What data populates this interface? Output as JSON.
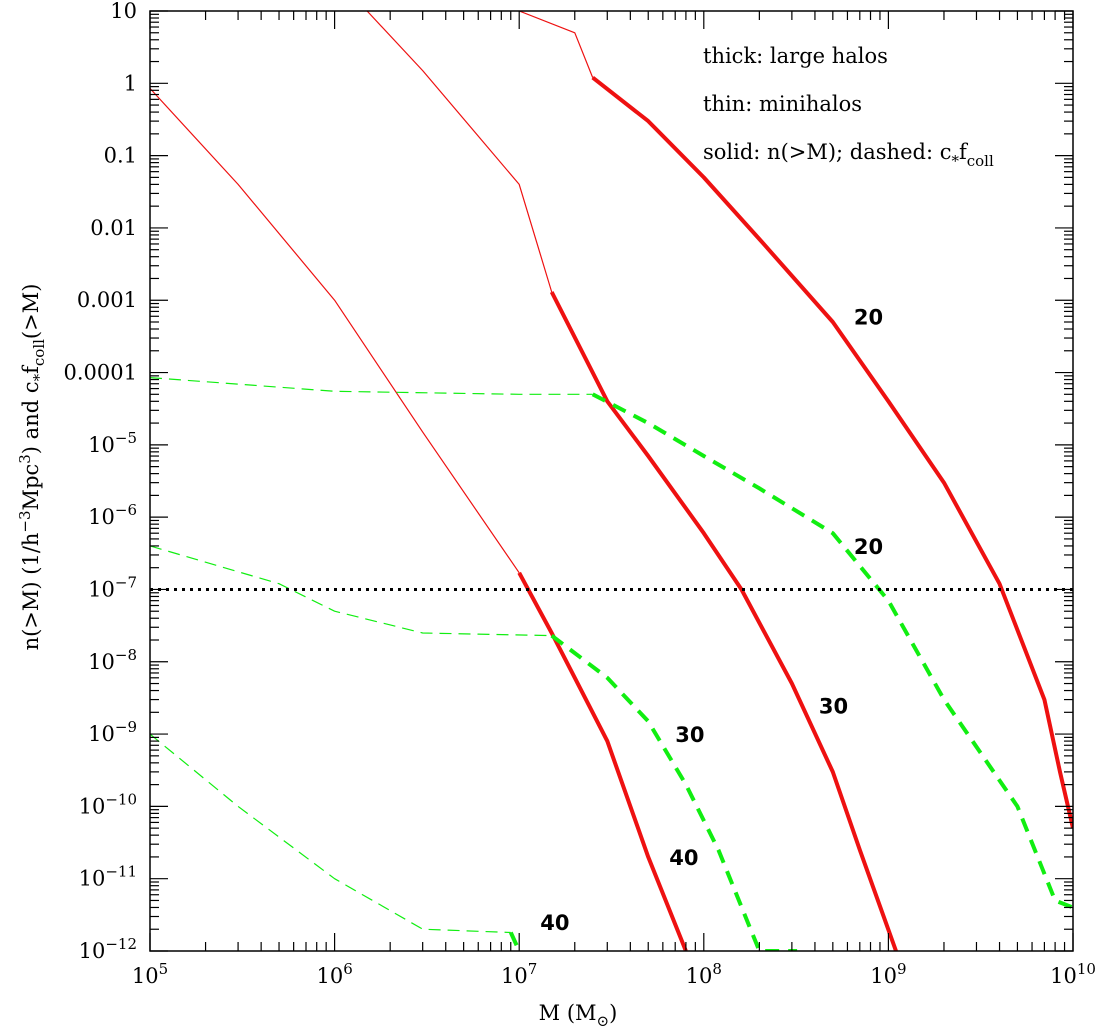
{
  "chart_data": {
    "type": "line",
    "xscale": "log",
    "yscale": "log",
    "xlim": [
      100000,
      10000000000
    ],
    "ylim": [
      1e-12,
      10
    ],
    "xlabel": {
      "pre": "M (M",
      "sub": "⊙",
      "post": ")"
    },
    "ylabel": {
      "p1": "n(>M) (1/h",
      "sup1": "−3",
      "p2": "Mpc",
      "sup2": "3",
      "p3": ") and c",
      "sub1": "*",
      "p4": "f",
      "sub2": "coll",
      "p5": "(>M)"
    },
    "x_tick_labels": [
      {
        "value": 100000,
        "base": "10",
        "exp": "5"
      },
      {
        "value": 1000000,
        "base": "10",
        "exp": "6"
      },
      {
        "value": 10000000,
        "base": "10",
        "exp": "7"
      },
      {
        "value": 100000000,
        "base": "10",
        "exp": "8"
      },
      {
        "value": 1000000000,
        "base": "10",
        "exp": "9"
      },
      {
        "value": 10000000000,
        "base": "10",
        "exp": "10"
      }
    ],
    "y_tick_labels": [
      {
        "value": 10,
        "text": "10"
      },
      {
        "value": 1,
        "text": "1"
      },
      {
        "value": 0.1,
        "text": "0.1"
      },
      {
        "value": 0.01,
        "text": "0.01"
      },
      {
        "value": 0.001,
        "text": "0.001"
      },
      {
        "value": 0.0001,
        "text": "0.0001"
      },
      {
        "value": 1e-05,
        "base": "10",
        "exp": "−5"
      },
      {
        "value": 1e-06,
        "base": "10",
        "exp": "−6"
      },
      {
        "value": 1e-07,
        "base": "10",
        "exp": "−7"
      },
      {
        "value": 1e-08,
        "base": "10",
        "exp": "−8"
      },
      {
        "value": 1e-09,
        "base": "10",
        "exp": "−9"
      },
      {
        "value": 1e-10,
        "base": "10",
        "exp": "−10"
      },
      {
        "value": 1e-11,
        "base": "10",
        "exp": "−11"
      },
      {
        "value": 1e-12,
        "base": "10",
        "exp": "−12"
      }
    ],
    "legend_notes": {
      "line1": "thick: large halos",
      "line2": "thin: minihalos",
      "line3_pre": "solid: n(>M); dashed: c",
      "line3_sub1": "*",
      "line3_mid": "f",
      "line3_sub2": "coll"
    },
    "colors": {
      "n_curves": "#ee1111",
      "f_curves": "#11ee11",
      "reference": "#000000",
      "axes": "#000000"
    },
    "series": [
      {
        "quantity": "n(>M)",
        "z": "20",
        "part": "minihalos",
        "points": [
          [
            10000000.0,
            10
          ],
          [
            20000000.0,
            5
          ],
          [
            25000000.0,
            1.2
          ]
        ]
      },
      {
        "quantity": "n(>M)",
        "z": "20",
        "part": "large halos",
        "points": [
          [
            25000000.0,
            1.2
          ],
          [
            50000000.0,
            0.3
          ],
          [
            100000000.0,
            0.05
          ],
          [
            200000000.0,
            0.007
          ],
          [
            500000000.0,
            0.0005
          ],
          [
            1000000000.0,
            4e-05
          ],
          [
            2000000000.0,
            3e-06
          ],
          [
            4000000000.0,
            1.2e-07
          ],
          [
            7000000000.0,
            3e-09
          ],
          [
            8500000000.0,
            3e-10
          ],
          [
            10000000000.0,
            5e-11
          ]
        ]
      },
      {
        "quantity": "n(>M)",
        "z": "30",
        "part": "minihalos",
        "points": [
          [
            1500000.0,
            10
          ],
          [
            3000000.0,
            1.5
          ],
          [
            10000000.0,
            0.04
          ],
          [
            15000000.0,
            0.0013
          ]
        ]
      },
      {
        "quantity": "n(>M)",
        "z": "30",
        "part": "large halos",
        "points": [
          [
            15000000.0,
            0.0013
          ],
          [
            30000000.0,
            4e-05
          ],
          [
            50000000.0,
            7e-06
          ],
          [
            100000000.0,
            6e-07
          ],
          [
            160000000.0,
            1e-07
          ],
          [
            300000000.0,
            5e-09
          ],
          [
            500000000.0,
            3e-10
          ],
          [
            700000000.0,
            2.5e-11
          ],
          [
            1100000000.0,
            1e-12
          ]
        ]
      },
      {
        "quantity": "n(>M)",
        "z": "40",
        "part": "minihalos",
        "points": [
          [
            100000.0,
            0.85
          ],
          [
            300000.0,
            0.04
          ],
          [
            1000000.0,
            0.001
          ],
          [
            3000000.0,
            1.5e-05
          ],
          [
            10000000.0,
            1.7e-07
          ]
        ]
      },
      {
        "quantity": "n(>M)",
        "z": "40",
        "part": "large halos",
        "points": [
          [
            10000000.0,
            1.7e-07
          ],
          [
            15000000.0,
            2.5e-08
          ],
          [
            20000000.0,
            6e-09
          ],
          [
            30000000.0,
            8e-10
          ],
          [
            50000000.0,
            2e-11
          ],
          [
            80000000.0,
            1e-12
          ]
        ]
      },
      {
        "quantity": "c*fcoll",
        "z": "20",
        "part": "minihalos",
        "points": [
          [
            100000.0,
            8.5e-05
          ],
          [
            1000000.0,
            5.5e-05
          ],
          [
            10000000.0,
            5e-05
          ],
          [
            25000000.0,
            5e-05
          ]
        ]
      },
      {
        "quantity": "c*fcoll",
        "z": "20",
        "part": "large halos",
        "points": [
          [
            25000000.0,
            5e-05
          ],
          [
            50000000.0,
            2e-05
          ],
          [
            100000000.0,
            7e-06
          ],
          [
            200000000.0,
            2.5e-06
          ],
          [
            500000000.0,
            6e-07
          ],
          [
            1000000000.0,
            7e-08
          ],
          [
            2000000000.0,
            3e-09
          ],
          [
            5000000000.0,
            1e-10
          ],
          [
            8000000000.0,
            5e-12
          ],
          [
            10000000000.0,
            4e-12
          ]
        ]
      },
      {
        "quantity": "c*fcoll",
        "z": "30",
        "part": "minihalos",
        "points": [
          [
            100000.0,
            4e-07
          ],
          [
            500000.0,
            1.2e-07
          ],
          [
            1000000.0,
            5e-08
          ],
          [
            3000000.0,
            2.5e-08
          ],
          [
            15000000.0,
            2.3e-08
          ]
        ]
      },
      {
        "quantity": "c*fcoll",
        "z": "30",
        "part": "large halos",
        "points": [
          [
            15000000.0,
            2.3e-08
          ],
          [
            30000000.0,
            6e-09
          ],
          [
            50000000.0,
            1.5e-09
          ],
          [
            80000000.0,
            2e-10
          ],
          [
            120000000.0,
            2.5e-11
          ],
          [
            200000000.0,
            1e-12
          ],
          [
            320000000.0,
            1e-12
          ]
        ]
      },
      {
        "quantity": "c*fcoll",
        "z": "40",
        "part": "minihalos",
        "points": [
          [
            100000.0,
            1e-09
          ],
          [
            300000.0,
            1e-10
          ],
          [
            1000000.0,
            1e-11
          ],
          [
            3000000.0,
            2e-12
          ],
          [
            9000000.0,
            1.8e-12
          ]
        ]
      },
      {
        "quantity": "c*fcoll",
        "z": "40",
        "part": "large halos",
        "points": [
          [
            9000000.0,
            1.8e-12
          ],
          [
            10000000.0,
            1e-12
          ]
        ]
      }
    ],
    "reference_line": {
      "y": 1e-07,
      "style": "dotted"
    },
    "curve_labels": [
      {
        "text": "20",
        "x": 650000000.0,
        "y": 0.0006
      },
      {
        "text": "20",
        "x": 650000000.0,
        "y": 4e-07
      },
      {
        "text": "30",
        "x": 420000000.0,
        "y": 2.5e-09
      },
      {
        "text": "30",
        "x": 70000000.0,
        "y": 1e-09
      },
      {
        "text": "40",
        "x": 65000000.0,
        "y": 2e-11
      },
      {
        "text": "40",
        "x": 13000000.0,
        "y": 2.5e-12
      }
    ]
  }
}
